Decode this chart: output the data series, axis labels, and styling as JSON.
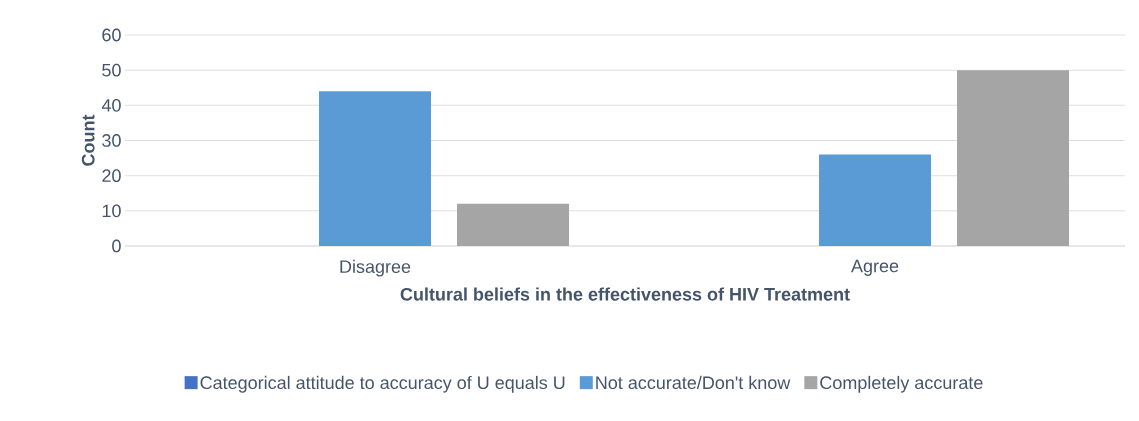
{
  "chart_data": {
    "type": "bar",
    "xlabel": "Cultural beliefs in the effectiveness of HIV Treatment",
    "ylabel": "Count",
    "categories": [
      "Disagree",
      "Agree"
    ],
    "series": [
      {
        "name": "Categorical attitude to accuracy of U equals U",
        "color": "#4472c4",
        "values": [
          null,
          null
        ]
      },
      {
        "name": "Not accurate/Don't know",
        "color": "#5b9bd5",
        "values": [
          44,
          26
        ]
      },
      {
        "name": "Completely accurate",
        "color": "#a5a5a5",
        "values": [
          12,
          50
        ]
      }
    ],
    "ylim": [
      0,
      60
    ],
    "yticks": [
      0,
      10,
      20,
      30,
      40,
      50,
      60
    ],
    "grid": "y",
    "legend": "bottom"
  }
}
